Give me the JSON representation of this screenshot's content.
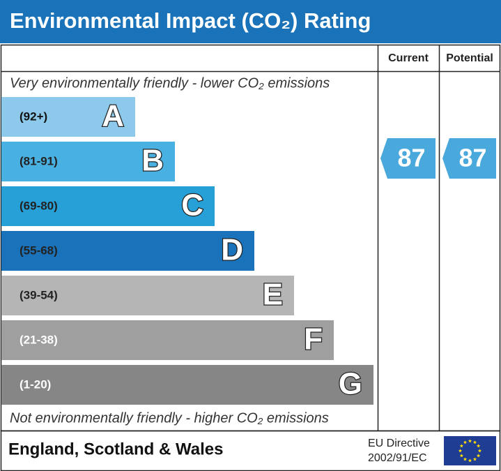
{
  "header": {
    "title": "Environmental Impact (CO₂) Rating"
  },
  "columns": {
    "current": "Current",
    "potential": "Potential"
  },
  "top_note": "Very environmentally friendly - lower CO₂ emissions",
  "bottom_note": "Not environmentally friendly - higher CO₂ emissions",
  "bands": [
    {
      "range": "(92+)",
      "letter": "A",
      "color": "#8cc9ea",
      "label_color": "#111111"
    },
    {
      "range": "(81-91)",
      "letter": "B",
      "color": "#48b1e2",
      "label_color": "#222222"
    },
    {
      "range": "(69-80)",
      "letter": "C",
      "color": "#27a0d8",
      "label_color": "#222222"
    },
    {
      "range": "(55-68)",
      "letter": "D",
      "color": "#1a73ba",
      "label_color": "#222222"
    },
    {
      "range": "(39-54)",
      "letter": "E",
      "color": "#b5b5b5",
      "label_color": "#222222"
    },
    {
      "range": "(21-38)",
      "letter": "F",
      "color": "#9f9f9f",
      "label_color": "#ffffff"
    },
    {
      "range": "(1-20)",
      "letter": "G",
      "color": "#868686",
      "label_color": "#ffffff"
    }
  ],
  "current": {
    "value": 87,
    "color": "#4aa9dc"
  },
  "potential": {
    "value": 87,
    "color": "#4aa9dc"
  },
  "footer": {
    "region": "England, Scotland & Wales",
    "directive_line1": "EU Directive",
    "directive_line2": "2002/91/EC"
  }
}
